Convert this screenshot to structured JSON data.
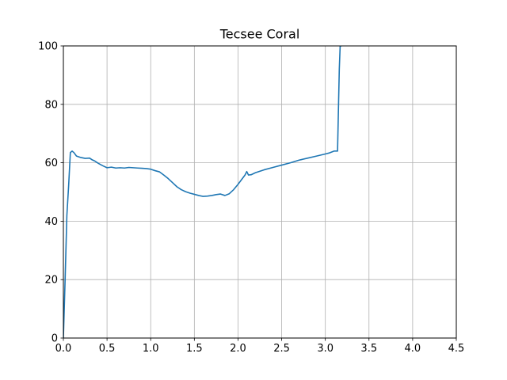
{
  "chart_data": {
    "type": "line",
    "title": "Tecsee Coral",
    "xlabel": "",
    "ylabel": "",
    "xlim": [
      0,
      4.5
    ],
    "ylim": [
      0,
      100
    ],
    "xticks": [
      0.0,
      0.5,
      1.0,
      1.5,
      2.0,
      2.5,
      3.0,
      3.5,
      4.0,
      4.5
    ],
    "xtick_labels": [
      "0.0",
      "0.5",
      "1.0",
      "1.5",
      "2.0",
      "2.5",
      "3.0",
      "3.5",
      "4.0",
      "4.5"
    ],
    "yticks": [
      0,
      20,
      40,
      60,
      80,
      100
    ],
    "ytick_labels": [
      "0",
      "20",
      "40",
      "60",
      "80",
      "100"
    ],
    "grid": true,
    "colors": {
      "line": "#1f77b4",
      "grid": "#b0b0b0",
      "axis": "#000000"
    },
    "series": [
      {
        "x": [
          0.0,
          0.02,
          0.04,
          0.06,
          0.08,
          0.1,
          0.12,
          0.15,
          0.2,
          0.25,
          0.3,
          0.33,
          0.36,
          0.4,
          0.45,
          0.5,
          0.55,
          0.6,
          0.65,
          0.7,
          0.75,
          0.8,
          0.85,
          0.9,
          0.95,
          1.0,
          1.05,
          1.1,
          1.15,
          1.2,
          1.25,
          1.3,
          1.35,
          1.4,
          1.45,
          1.5,
          1.55,
          1.6,
          1.65,
          1.7,
          1.75,
          1.8,
          1.85,
          1.9,
          1.95,
          2.0,
          2.05,
          2.08,
          2.1,
          2.12,
          2.15,
          2.2,
          2.3,
          2.4,
          2.5,
          2.6,
          2.7,
          2.8,
          2.9,
          3.0,
          3.05,
          3.1,
          3.14,
          3.15,
          3.16,
          3.17,
          3.18
        ],
        "y": [
          0,
          20,
          42,
          52,
          63.5,
          64,
          63.5,
          62.3,
          61.8,
          61.5,
          61.6,
          61.0,
          60.6,
          59.8,
          59.0,
          58.3,
          58.5,
          58.2,
          58.3,
          58.2,
          58.4,
          58.3,
          58.2,
          58.1,
          58.0,
          57.8,
          57.3,
          56.9,
          55.8,
          54.6,
          53.2,
          51.8,
          50.8,
          50.1,
          49.6,
          49.2,
          48.8,
          48.5,
          48.6,
          48.8,
          49.1,
          49.3,
          48.8,
          49.4,
          50.8,
          52.6,
          54.6,
          55.8,
          57.0,
          55.8,
          55.9,
          56.6,
          57.6,
          58.4,
          59.2,
          60.0,
          60.9,
          61.6,
          62.3,
          63.0,
          63.4,
          64.0,
          64.0,
          78,
          92,
          100,
          100
        ]
      }
    ]
  }
}
